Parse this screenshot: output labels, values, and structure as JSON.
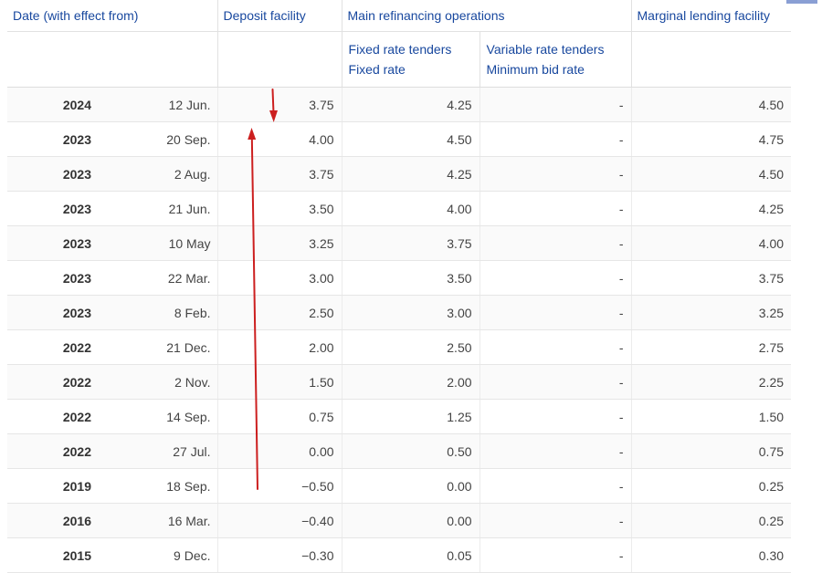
{
  "header": {
    "date_col": "Date (with effect from)",
    "deposit_col": "Deposit facility",
    "mro_col": "Main refinancing operations",
    "mlf_col": "Marginal lending facility",
    "fixed_line1": "Fixed rate tenders",
    "fixed_line2": "Fixed rate",
    "variable_line1": "Variable rate tenders",
    "variable_line2": "Minimum bid rate"
  },
  "rows": [
    {
      "year": "2024",
      "day": "12 Jun.",
      "deposit": "3.75",
      "fixed": "4.25",
      "variable": "-",
      "marginal": "4.50"
    },
    {
      "year": "2023",
      "day": "20 Sep.",
      "deposit": "4.00",
      "fixed": "4.50",
      "variable": "-",
      "marginal": "4.75"
    },
    {
      "year": "2023",
      "day": "2 Aug.",
      "deposit": "3.75",
      "fixed": "4.25",
      "variable": "-",
      "marginal": "4.50"
    },
    {
      "year": "2023",
      "day": "21 Jun.",
      "deposit": "3.50",
      "fixed": "4.00",
      "variable": "-",
      "marginal": "4.25"
    },
    {
      "year": "2023",
      "day": "10 May",
      "deposit": "3.25",
      "fixed": "3.75",
      "variable": "-",
      "marginal": "4.00"
    },
    {
      "year": "2023",
      "day": "22 Mar.",
      "deposit": "3.00",
      "fixed": "3.50",
      "variable": "-",
      "marginal": "3.75"
    },
    {
      "year": "2023",
      "day": "8 Feb.",
      "deposit": "2.50",
      "fixed": "3.00",
      "variable": "-",
      "marginal": "3.25"
    },
    {
      "year": "2022",
      "day": "21 Dec.",
      "deposit": "2.00",
      "fixed": "2.50",
      "variable": "-",
      "marginal": "2.75"
    },
    {
      "year": "2022",
      "day": "2 Nov.",
      "deposit": "1.50",
      "fixed": "2.00",
      "variable": "-",
      "marginal": "2.25"
    },
    {
      "year": "2022",
      "day": "14 Sep.",
      "deposit": "0.75",
      "fixed": "1.25",
      "variable": "-",
      "marginal": "1.50"
    },
    {
      "year": "2022",
      "day": "27 Jul.",
      "deposit": "0.00",
      "fixed": "0.50",
      "variable": "-",
      "marginal": "0.75"
    },
    {
      "year": "2019",
      "day": "18 Sep.",
      "deposit": "−0.50",
      "fixed": "0.00",
      "variable": "-",
      "marginal": "0.25"
    },
    {
      "year": "2016",
      "day": "16 Mar.",
      "deposit": "−0.40",
      "fixed": "0.00",
      "variable": "-",
      "marginal": "0.25"
    },
    {
      "year": "2015",
      "day": "9 Dec.",
      "deposit": "−0.30",
      "fixed": "0.05",
      "variable": "-",
      "marginal": "0.30"
    }
  ],
  "colors": {
    "header_text": "#17479e",
    "annotation": "#cc1f1f",
    "corner_tab": "#8a9fd4"
  },
  "annotations": [
    {
      "name": "arrow-down-icon",
      "color": "#cc1f1f"
    },
    {
      "name": "arrow-up-icon",
      "color": "#cc1f1f"
    }
  ]
}
